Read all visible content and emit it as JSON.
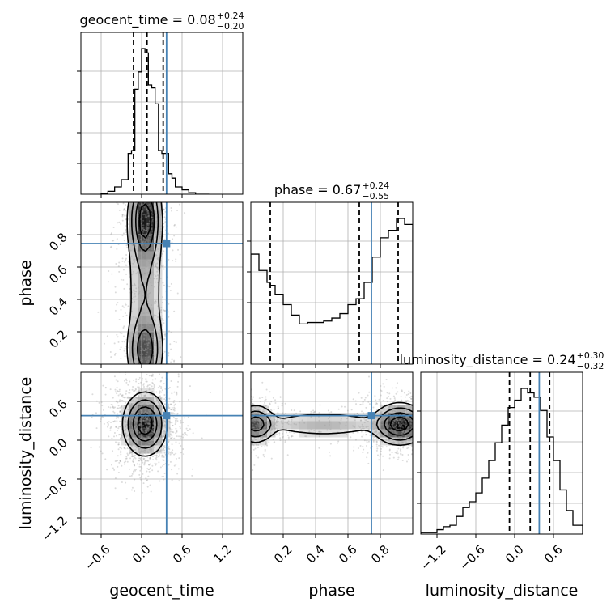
{
  "chart_data": {
    "type": "corner",
    "parameters": [
      "geocent_time",
      "phase",
      "luminosity_distance"
    ],
    "axis_labels": [
      "geocent_time",
      "phase",
      "luminosity_distance"
    ],
    "truth": {
      "geocent_time": 0.37,
      "phase": 0.745,
      "luminosity_distance": 0.38
    },
    "truth_color": "#4682b4",
    "grid": true,
    "titles": [
      {
        "text": "geocent_time = 0.08",
        "sup": "+0.24",
        "sub": "−0.20"
      },
      {
        "text": "phase = 0.67",
        "sup": "+0.24",
        "sub": "−0.55"
      },
      {
        "text": "luminosity_distance = 0.24",
        "sup": "+0.30",
        "sub": "−0.32"
      }
    ],
    "ranges": {
      "geocent_time": [
        -0.9,
        1.5
      ],
      "phase": [
        0.0,
        1.0
      ],
      "luminosity_distance": [
        -1.45,
        1.05
      ]
    },
    "ticks": {
      "geocent_time": [
        -0.6,
        0.0,
        0.6,
        1.2
      ],
      "phase": [
        0.2,
        0.4,
        0.6,
        0.8
      ],
      "luminosity_distance": [
        -1.2,
        -0.6,
        0.0,
        0.6
      ]
    },
    "tick_labels": {
      "geocent_time": [
        "−0.6",
        "0.0",
        "0.6",
        "1.2"
      ],
      "phase": [
        "0.2",
        "0.4",
        "0.6",
        "0.8"
      ],
      "luminosity_distance": [
        "−1.2",
        "−0.6",
        "0.0",
        "0.6"
      ]
    },
    "quantiles": {
      "geocent_time": [
        -0.12,
        0.08,
        0.32
      ],
      "phase": [
        0.12,
        0.67,
        0.91
      ],
      "luminosity_distance": [
        -0.08,
        0.24,
        0.54
      ]
    },
    "histograms": {
      "geocent_time": {
        "bins": [
          -0.6,
          -0.5,
          -0.4,
          -0.3,
          -0.2,
          -0.15,
          -0.1,
          -0.05,
          0.0,
          0.05,
          0.1,
          0.15,
          0.2,
          0.25,
          0.3,
          0.35,
          0.4,
          0.45,
          0.5,
          0.6,
          0.7,
          0.8,
          1.0
        ],
        "counts": [
          0.005,
          0.02,
          0.05,
          0.1,
          0.28,
          0.3,
          0.72,
          0.84,
          1.0,
          0.97,
          0.75,
          0.73,
          0.62,
          0.3,
          0.28,
          0.28,
          0.14,
          0.11,
          0.05,
          0.03,
          0.01,
          0.0
        ]
      },
      "phase": {
        "bins": [
          0.0,
          0.05,
          0.1,
          0.12,
          0.15,
          0.2,
          0.25,
          0.3,
          0.35,
          0.4,
          0.45,
          0.5,
          0.55,
          0.6,
          0.65,
          0.7,
          0.75,
          0.8,
          0.85,
          0.9,
          0.95,
          1.0
        ],
        "counts": [
          0.74,
          0.63,
          0.55,
          0.53,
          0.47,
          0.4,
          0.33,
          0.27,
          0.28,
          0.28,
          0.29,
          0.31,
          0.34,
          0.4,
          0.44,
          0.55,
          0.72,
          0.85,
          0.9,
          0.98,
          0.94
        ]
      },
      "luminosity_distance": {
        "bins": [
          -1.45,
          -1.2,
          -1.1,
          -1.0,
          -0.9,
          -0.8,
          -0.7,
          -0.6,
          -0.5,
          -0.4,
          -0.3,
          -0.2,
          -0.1,
          0.0,
          0.1,
          0.2,
          0.3,
          0.4,
          0.5,
          0.6,
          0.7,
          0.8,
          0.9,
          1.05
        ],
        "counts": [
          0.01,
          0.03,
          0.05,
          0.06,
          0.12,
          0.18,
          0.22,
          0.28,
          0.38,
          0.5,
          0.62,
          0.74,
          0.86,
          0.91,
          0.99,
          0.96,
          0.93,
          0.84,
          0.66,
          0.5,
          0.3,
          0.16,
          0.06
        ]
      }
    },
    "panels_2d": [
      {
        "x": "geocent_time",
        "y": "phase",
        "modes": [
          {
            "x": 0.05,
            "y": 0.9,
            "sx": 0.12,
            "sy": 0.14,
            "w": 1.0
          },
          {
            "x": 0.05,
            "y": 0.08,
            "sx": 0.13,
            "sy": 0.12,
            "w": 0.75
          },
          {
            "x": 0.05,
            "y": 0.5,
            "sx": 0.15,
            "sy": 0.35,
            "w": 0.35
          }
        ]
      },
      {
        "x": "geocent_time",
        "y": "luminosity_distance",
        "modes": [
          {
            "x": 0.05,
            "y": 0.25,
            "sx": 0.16,
            "sy": 0.24,
            "w": 1.0
          }
        ]
      },
      {
        "x": "phase",
        "y": "luminosity_distance",
        "modes": [
          {
            "x": 0.92,
            "y": 0.25,
            "sx": 0.08,
            "sy": 0.16,
            "w": 1.0
          },
          {
            "x": 0.03,
            "y": 0.25,
            "sx": 0.06,
            "sy": 0.15,
            "w": 0.7
          },
          {
            "x": 0.45,
            "y": 0.25,
            "sx": 0.22,
            "sy": 0.11,
            "w": 0.3
          }
        ]
      }
    ]
  }
}
